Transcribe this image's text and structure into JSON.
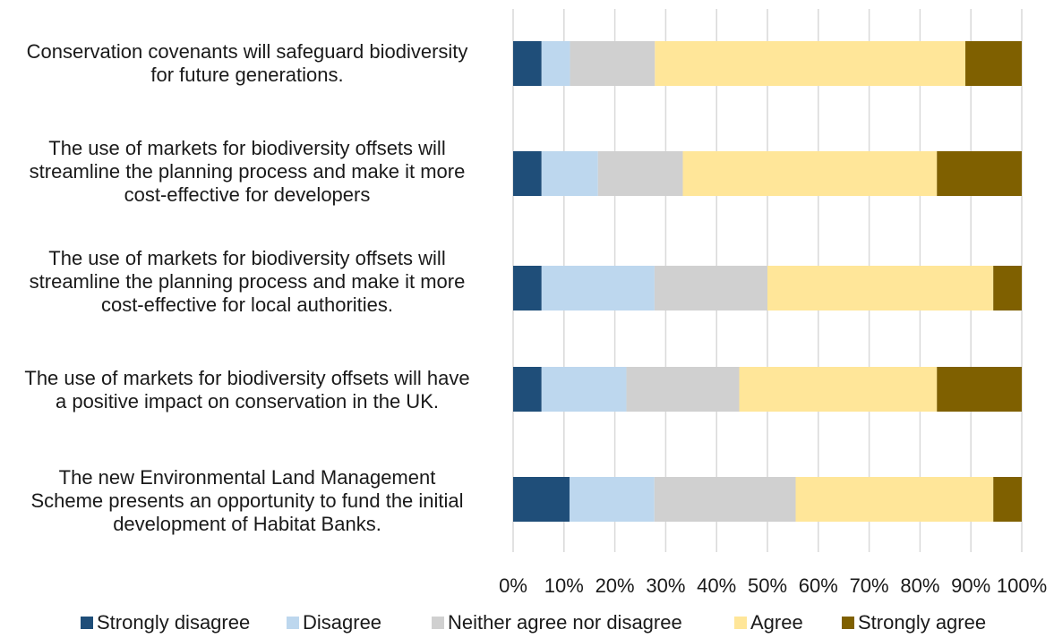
{
  "chart_data": {
    "type": "bar",
    "orientation": "horizontal",
    "stacked": "percent",
    "categories": [
      "Conservation covenants will safeguard biodiversity for future generations.",
      "The use of markets for biodiversity offsets will streamline the planning process and make it more cost-effective for developers",
      "The use of markets for biodiversity offsets will streamline the planning process and make it more cost-effective for local authorities.",
      "The use of markets for biodiversity offsets will have a positive impact on conservation in the UK.",
      "The new Environmental Land Management Scheme presents an opportunity to fund the initial development of Habitat Banks."
    ],
    "series": [
      {
        "name": "Strongly disagree",
        "color": "#1f4e79",
        "values": [
          5.6,
          5.6,
          5.6,
          5.6,
          11.1
        ]
      },
      {
        "name": "Disagree",
        "color": "#bdd7ee",
        "values": [
          5.6,
          11.1,
          22.2,
          16.7,
          16.7
        ]
      },
      {
        "name": "Neither agree nor disagree",
        "color": "#d0d0d0",
        "values": [
          16.7,
          16.7,
          22.2,
          22.2,
          27.8
        ]
      },
      {
        "name": "Agree",
        "color": "#ffe699",
        "values": [
          61.1,
          50.0,
          44.4,
          38.9,
          38.9
        ]
      },
      {
        "name": "Strongly agree",
        "color": "#7f6000",
        "values": [
          11.1,
          16.7,
          5.6,
          16.7,
          5.6
        ]
      }
    ],
    "xlim": [
      0,
      100
    ],
    "xticks": [
      "0%",
      "10%",
      "20%",
      "30%",
      "40%",
      "50%",
      "60%",
      "70%",
      "80%",
      "90%",
      "100%"
    ],
    "grid": "vertical",
    "legend_position": "bottom"
  },
  "labels": {
    "cat0": [
      "Conservation covenants will safeguard biodiversity",
      "for future generations."
    ],
    "cat1": [
      "The use of markets for biodiversity offsets will",
      "streamline the planning process and make it more",
      "cost-effective for developers"
    ],
    "cat2": [
      "The use of markets for biodiversity offsets will",
      "streamline the planning process and make it more",
      "cost-effective for local authorities."
    ],
    "cat3": [
      "The use of markets for biodiversity offsets will have",
      "a positive impact on conservation in the UK."
    ],
    "cat4": [
      "The new Environmental Land Management",
      "Scheme presents an opportunity to fund the initial",
      "development of Habitat Banks."
    ]
  }
}
